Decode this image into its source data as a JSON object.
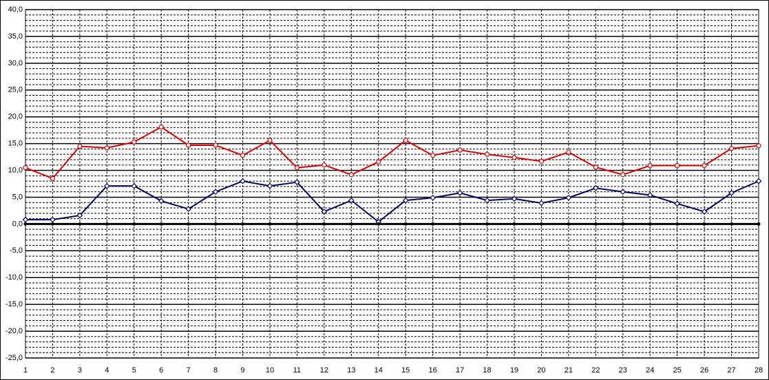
{
  "chart_data": {
    "type": "line",
    "categories": [
      "1",
      "2",
      "3",
      "4",
      "5",
      "6",
      "7",
      "8",
      "9",
      "10",
      "11",
      "12",
      "13",
      "14",
      "15",
      "16",
      "17",
      "18",
      "19",
      "20",
      "21",
      "22",
      "23",
      "24",
      "25",
      "26",
      "27",
      "28"
    ],
    "series": [
      {
        "color": "#dd0000",
        "marker": "circle",
        "values": [
          10.5,
          8.5,
          14.5,
          14.2,
          15.3,
          18.1,
          14.7,
          14.7,
          12.8,
          15.6,
          10.5,
          11.0,
          9.2,
          11.6,
          15.6,
          12.8,
          13.8,
          13.0,
          12.4,
          11.7,
          13.4,
          10.6,
          9.2,
          10.9,
          10.9,
          10.9,
          14.1,
          14.6
        ]
      },
      {
        "color": "#000066",
        "marker": "diamond",
        "values": [
          0.8,
          0.8,
          1.6,
          7.1,
          7.1,
          4.3,
          2.8,
          6.0,
          8.0,
          7.1,
          7.8,
          2.3,
          4.4,
          0.4,
          4.4,
          4.9,
          5.8,
          4.4,
          4.7,
          3.9,
          4.9,
          6.7,
          6.0,
          5.4,
          3.8,
          2.3,
          5.8,
          8.0
        ]
      },
      {
        "color": "#000000",
        "marker": "dot",
        "values": [
          0,
          0,
          0,
          0,
          0,
          0,
          0,
          0,
          0,
          0,
          0,
          0,
          0,
          0,
          0,
          0,
          0,
          0,
          0,
          0,
          0,
          0,
          0,
          0,
          0,
          0,
          0,
          0
        ]
      }
    ],
    "ylim": [
      -25,
      40
    ],
    "yticks": [
      {
        "value": -25,
        "label": "-25,0"
      },
      {
        "value": -20,
        "label": "-20,0"
      },
      {
        "value": -15,
        "label": "-15,0"
      },
      {
        "value": -10,
        "label": "-10,0"
      },
      {
        "value": -5,
        "label": "-5,0"
      },
      {
        "value": 0,
        "label": "0,0"
      },
      {
        "value": 5,
        "label": "5,0"
      },
      {
        "value": 10,
        "label": "10,0"
      },
      {
        "value": 15,
        "label": "15,0"
      },
      {
        "value": 20,
        "label": "20,0"
      },
      {
        "value": 25,
        "label": "25,0"
      },
      {
        "value": 30,
        "label": "30,0"
      },
      {
        "value": 35,
        "label": "35,0"
      },
      {
        "value": 40,
        "label": "40,0"
      }
    ],
    "grid": true
  }
}
